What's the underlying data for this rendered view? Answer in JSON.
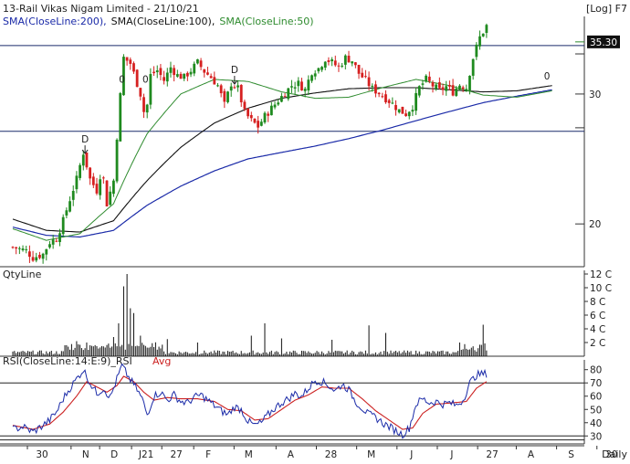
{
  "chart_data": {
    "type": "candlestick",
    "title": "13-Rail Vikas Nigam Limited - 21/10/21",
    "header_right": "[Log] F7",
    "footer_right": "Daily",
    "last_price_label": "35.30",
    "colors": {
      "up": "#1f8a1f",
      "down": "#d62020",
      "sma200": "#1a2aa8",
      "sma100": "#111111",
      "sma50": "#2e8b2e",
      "rsi": "#1a2aa8",
      "rsi_avg": "#cc2222",
      "volume": "#111111"
    },
    "legend": [
      {
        "label": "SMA(CloseLine:200),",
        "color": "#1a2aa8"
      },
      {
        "label": "SMA(CloseLine:100),",
        "color": "#111111"
      },
      {
        "label": "SMA(CloseLine:50)",
        "color": "#2e8b2e"
      }
    ],
    "x_tick_labels": [
      "30",
      "N",
      "D",
      "J21",
      "27",
      "F",
      "M",
      "A",
      "28",
      "M",
      "J",
      "J",
      "27",
      "A",
      "S",
      "30"
    ],
    "x_tick_days": [
      0,
      26,
      43,
      62,
      80,
      99,
      123,
      148,
      172,
      196,
      220,
      244,
      268,
      291,
      315,
      339
    ],
    "price_panel": {
      "y_scale": "log",
      "y_range": [
        17.5,
        38
      ],
      "y_ticks": [
        {
          "value": 20,
          "label": "20"
        },
        {
          "value": 30,
          "label": "30"
        }
      ],
      "horizontal_lines": [
        34.9,
        26.7
      ],
      "markers": [
        {
          "text": "D",
          "day": 43,
          "price": 25.2,
          "arrow": "down"
        },
        {
          "text": "0",
          "day": 65,
          "price": 30.4,
          "arrow": "none"
        },
        {
          "text": "0",
          "day": 79,
          "price": 30.4,
          "arrow": "none"
        },
        {
          "text": "D",
          "day": 132,
          "price": 31.3,
          "arrow": "down"
        },
        {
          "text": "0",
          "day": 318,
          "price": 30.7,
          "arrow": "none"
        }
      ],
      "close_anchors": [
        [
          0,
          18.6
        ],
        [
          8,
          18.4
        ],
        [
          12,
          18.0
        ],
        [
          18,
          18.2
        ],
        [
          22,
          18.9
        ],
        [
          26,
          19.1
        ],
        [
          30,
          20.2
        ],
        [
          34,
          21.6
        ],
        [
          38,
          23.0
        ],
        [
          42,
          25.0
        ],
        [
          46,
          23.0
        ],
        [
          50,
          22.2
        ],
        [
          53,
          23.8
        ],
        [
          56,
          21.3
        ],
        [
          60,
          22.9
        ],
        [
          63,
          28.0
        ],
        [
          66,
          33.6
        ],
        [
          70,
          33.0
        ],
        [
          73,
          31.5
        ],
        [
          76,
          30.0
        ],
        [
          79,
          27.6
        ],
        [
          82,
          31.8
        ],
        [
          86,
          32.3
        ],
        [
          90,
          31.3
        ],
        [
          94,
          32.6
        ],
        [
          98,
          31.8
        ],
        [
          102,
          31.6
        ],
        [
          106,
          32.3
        ],
        [
          110,
          33.1
        ],
        [
          114,
          32.2
        ],
        [
          118,
          31.6
        ],
        [
          122,
          30.8
        ],
        [
          126,
          29.0
        ],
        [
          130,
          31.0
        ],
        [
          134,
          30.5
        ],
        [
          138,
          28.3
        ],
        [
          142,
          27.6
        ],
        [
          146,
          27.1
        ],
        [
          150,
          28.0
        ],
        [
          154,
          28.7
        ],
        [
          158,
          29.4
        ],
        [
          162,
          30.1
        ],
        [
          166,
          30.8
        ],
        [
          170,
          31.0
        ],
        [
          174,
          30.4
        ],
        [
          178,
          32.2
        ],
        [
          182,
          32.5
        ],
        [
          186,
          33.5
        ],
        [
          190,
          33.1
        ],
        [
          194,
          32.6
        ],
        [
          198,
          33.6
        ],
        [
          202,
          33.3
        ],
        [
          206,
          32.0
        ],
        [
          210,
          31.3
        ],
        [
          214,
          30.5
        ],
        [
          218,
          30.1
        ],
        [
          222,
          29.6
        ],
        [
          226,
          29.1
        ],
        [
          230,
          28.5
        ],
        [
          234,
          28.2
        ],
        [
          238,
          28.9
        ],
        [
          242,
          30.6
        ],
        [
          246,
          31.4
        ],
        [
          250,
          30.8
        ],
        [
          254,
          30.3
        ],
        [
          258,
          30.7
        ],
        [
          262,
          30.2
        ],
        [
          266,
          30.9
        ],
        [
          270,
          30.6
        ],
        [
          274,
          33.6
        ],
        [
          278,
          35.8
        ],
        [
          282,
          37.1
        ]
      ],
      "sma_anchors": {
        "sma200": [
          [
            0,
            19.8
          ],
          [
            20,
            19.3
          ],
          [
            40,
            19.2
          ],
          [
            60,
            19.6
          ],
          [
            80,
            21.2
          ],
          [
            100,
            22.5
          ],
          [
            120,
            23.6
          ],
          [
            140,
            24.5
          ],
          [
            160,
            25.0
          ],
          [
            180,
            25.5
          ],
          [
            200,
            26.1
          ],
          [
            220,
            26.8
          ],
          [
            240,
            27.6
          ],
          [
            260,
            28.4
          ],
          [
            280,
            29.2
          ],
          [
            300,
            29.8
          ],
          [
            321,
            30.4
          ]
        ],
        "sma100": [
          [
            0,
            20.3
          ],
          [
            20,
            19.6
          ],
          [
            40,
            19.5
          ],
          [
            60,
            20.2
          ],
          [
            80,
            22.9
          ],
          [
            100,
            25.4
          ],
          [
            120,
            27.4
          ],
          [
            140,
            28.7
          ],
          [
            160,
            29.6
          ],
          [
            180,
            30.1
          ],
          [
            200,
            30.5
          ],
          [
            220,
            30.6
          ],
          [
            240,
            30.6
          ],
          [
            260,
            30.4
          ],
          [
            280,
            30.2
          ],
          [
            300,
            30.3
          ],
          [
            321,
            30.8
          ]
        ],
        "sma50": [
          [
            0,
            19.7
          ],
          [
            20,
            19.0
          ],
          [
            40,
            19.4
          ],
          [
            60,
            21.3
          ],
          [
            80,
            26.5
          ],
          [
            100,
            30.0
          ],
          [
            120,
            31.4
          ],
          [
            140,
            31.2
          ],
          [
            160,
            30.2
          ],
          [
            180,
            29.6
          ],
          [
            200,
            29.7
          ],
          [
            220,
            30.6
          ],
          [
            240,
            31.4
          ],
          [
            260,
            30.8
          ],
          [
            280,
            29.9
          ],
          [
            300,
            29.7
          ],
          [
            321,
            30.3
          ]
        ]
      }
    },
    "volume_panel": {
      "title": "QtyLine",
      "y_range": [
        0,
        12
      ],
      "y_ticks": [
        {
          "value": 2,
          "label": "2 C"
        },
        {
          "value": 4,
          "label": "4 C"
        },
        {
          "value": 6,
          "label": "6 C"
        },
        {
          "value": 8,
          "label": "8 C"
        },
        {
          "value": 10,
          "label": "10 C"
        },
        {
          "value": 12,
          "label": "12 C"
        }
      ],
      "spikes": [
        [
          38,
          2.2
        ],
        [
          44,
          2.0
        ],
        [
          60,
          2.8
        ],
        [
          63,
          4.8
        ],
        [
          66,
          10.2
        ],
        [
          68,
          12.0
        ],
        [
          70,
          7.0
        ],
        [
          72,
          6.3
        ],
        [
          76,
          3.0
        ],
        [
          92,
          2.5
        ],
        [
          110,
          2.0
        ],
        [
          142,
          3.0
        ],
        [
          150,
          4.8
        ],
        [
          160,
          2.6
        ],
        [
          190,
          2.4
        ],
        [
          212,
          4.5
        ],
        [
          222,
          3.4
        ],
        [
          266,
          2.0
        ],
        [
          280,
          4.6
        ],
        [
          284,
          3.4
        ],
        [
          286,
          4.6
        ]
      ]
    },
    "rsi_panel": {
      "title": "RSI(CloseLine:14:E:9)_RSI",
      "avg_label": "Avg",
      "y_range": [
        24,
        86
      ],
      "y_ticks": [
        {
          "value": 30,
          "label": "30"
        },
        {
          "value": 40,
          "label": "40"
        },
        {
          "value": 50,
          "label": "50"
        },
        {
          "value": 60,
          "label": "60"
        },
        {
          "value": 70,
          "label": "70"
        },
        {
          "value": 80,
          "label": "80"
        }
      ],
      "horizontal_lines": [
        70,
        30
      ],
      "rsi_anchors": [
        [
          0,
          35
        ],
        [
          6,
          37
        ],
        [
          12,
          33
        ],
        [
          18,
          38
        ],
        [
          22,
          42
        ],
        [
          26,
          48
        ],
        [
          30,
          58
        ],
        [
          34,
          66
        ],
        [
          38,
          73
        ],
        [
          42,
          80
        ],
        [
          46,
          70
        ],
        [
          50,
          62
        ],
        [
          54,
          66
        ],
        [
          58,
          59
        ],
        [
          62,
          73
        ],
        [
          65,
          83
        ],
        [
          69,
          74
        ],
        [
          73,
          67
        ],
        [
          77,
          58
        ],
        [
          80,
          46
        ],
        [
          84,
          60
        ],
        [
          88,
          63
        ],
        [
          92,
          57
        ],
        [
          96,
          61
        ],
        [
          100,
          56
        ],
        [
          104,
          55
        ],
        [
          108,
          59
        ],
        [
          112,
          61
        ],
        [
          116,
          57
        ],
        [
          120,
          53
        ],
        [
          124,
          49
        ],
        [
          128,
          46
        ],
        [
          132,
          52
        ],
        [
          136,
          50
        ],
        [
          140,
          41
        ],
        [
          144,
          38
        ],
        [
          148,
          40
        ],
        [
          152,
          46
        ],
        [
          156,
          51
        ],
        [
          160,
          55
        ],
        [
          164,
          58
        ],
        [
          168,
          62
        ],
        [
          172,
          60
        ],
        [
          176,
          66
        ],
        [
          180,
          72
        ],
        [
          184,
          71
        ],
        [
          188,
          68
        ],
        [
          192,
          64
        ],
        [
          196,
          69
        ],
        [
          200,
          65
        ],
        [
          204,
          56
        ],
        [
          208,
          51
        ],
        [
          212,
          46
        ],
        [
          216,
          44
        ],
        [
          220,
          40
        ],
        [
          224,
          37
        ],
        [
          228,
          34
        ],
        [
          232,
          31
        ],
        [
          236,
          36
        ],
        [
          240,
          54
        ],
        [
          244,
          58
        ],
        [
          248,
          55
        ],
        [
          252,
          56
        ],
        [
          256,
          54
        ],
        [
          260,
          55
        ],
        [
          264,
          53
        ],
        [
          268,
          57
        ],
        [
          272,
          70
        ],
        [
          276,
          76
        ],
        [
          282,
          77
        ]
      ],
      "avg_anchors": [
        [
          0,
          38
        ],
        [
          12,
          35
        ],
        [
          22,
          39
        ],
        [
          30,
          48
        ],
        [
          38,
          60
        ],
        [
          44,
          71
        ],
        [
          50,
          67
        ],
        [
          56,
          63
        ],
        [
          62,
          68
        ],
        [
          66,
          75
        ],
        [
          72,
          71
        ],
        [
          78,
          63
        ],
        [
          84,
          57
        ],
        [
          92,
          59
        ],
        [
          100,
          58
        ],
        [
          110,
          58
        ],
        [
          120,
          56
        ],
        [
          128,
          50
        ],
        [
          136,
          49
        ],
        [
          144,
          42
        ],
        [
          152,
          43
        ],
        [
          160,
          50
        ],
        [
          168,
          57
        ],
        [
          176,
          61
        ],
        [
          184,
          67
        ],
        [
          192,
          66
        ],
        [
          200,
          66
        ],
        [
          208,
          58
        ],
        [
          216,
          49
        ],
        [
          224,
          42
        ],
        [
          232,
          35
        ],
        [
          238,
          36
        ],
        [
          244,
          47
        ],
        [
          252,
          54
        ],
        [
          262,
          55
        ],
        [
          270,
          56
        ],
        [
          276,
          66
        ],
        [
          282,
          71
        ]
      ]
    }
  }
}
